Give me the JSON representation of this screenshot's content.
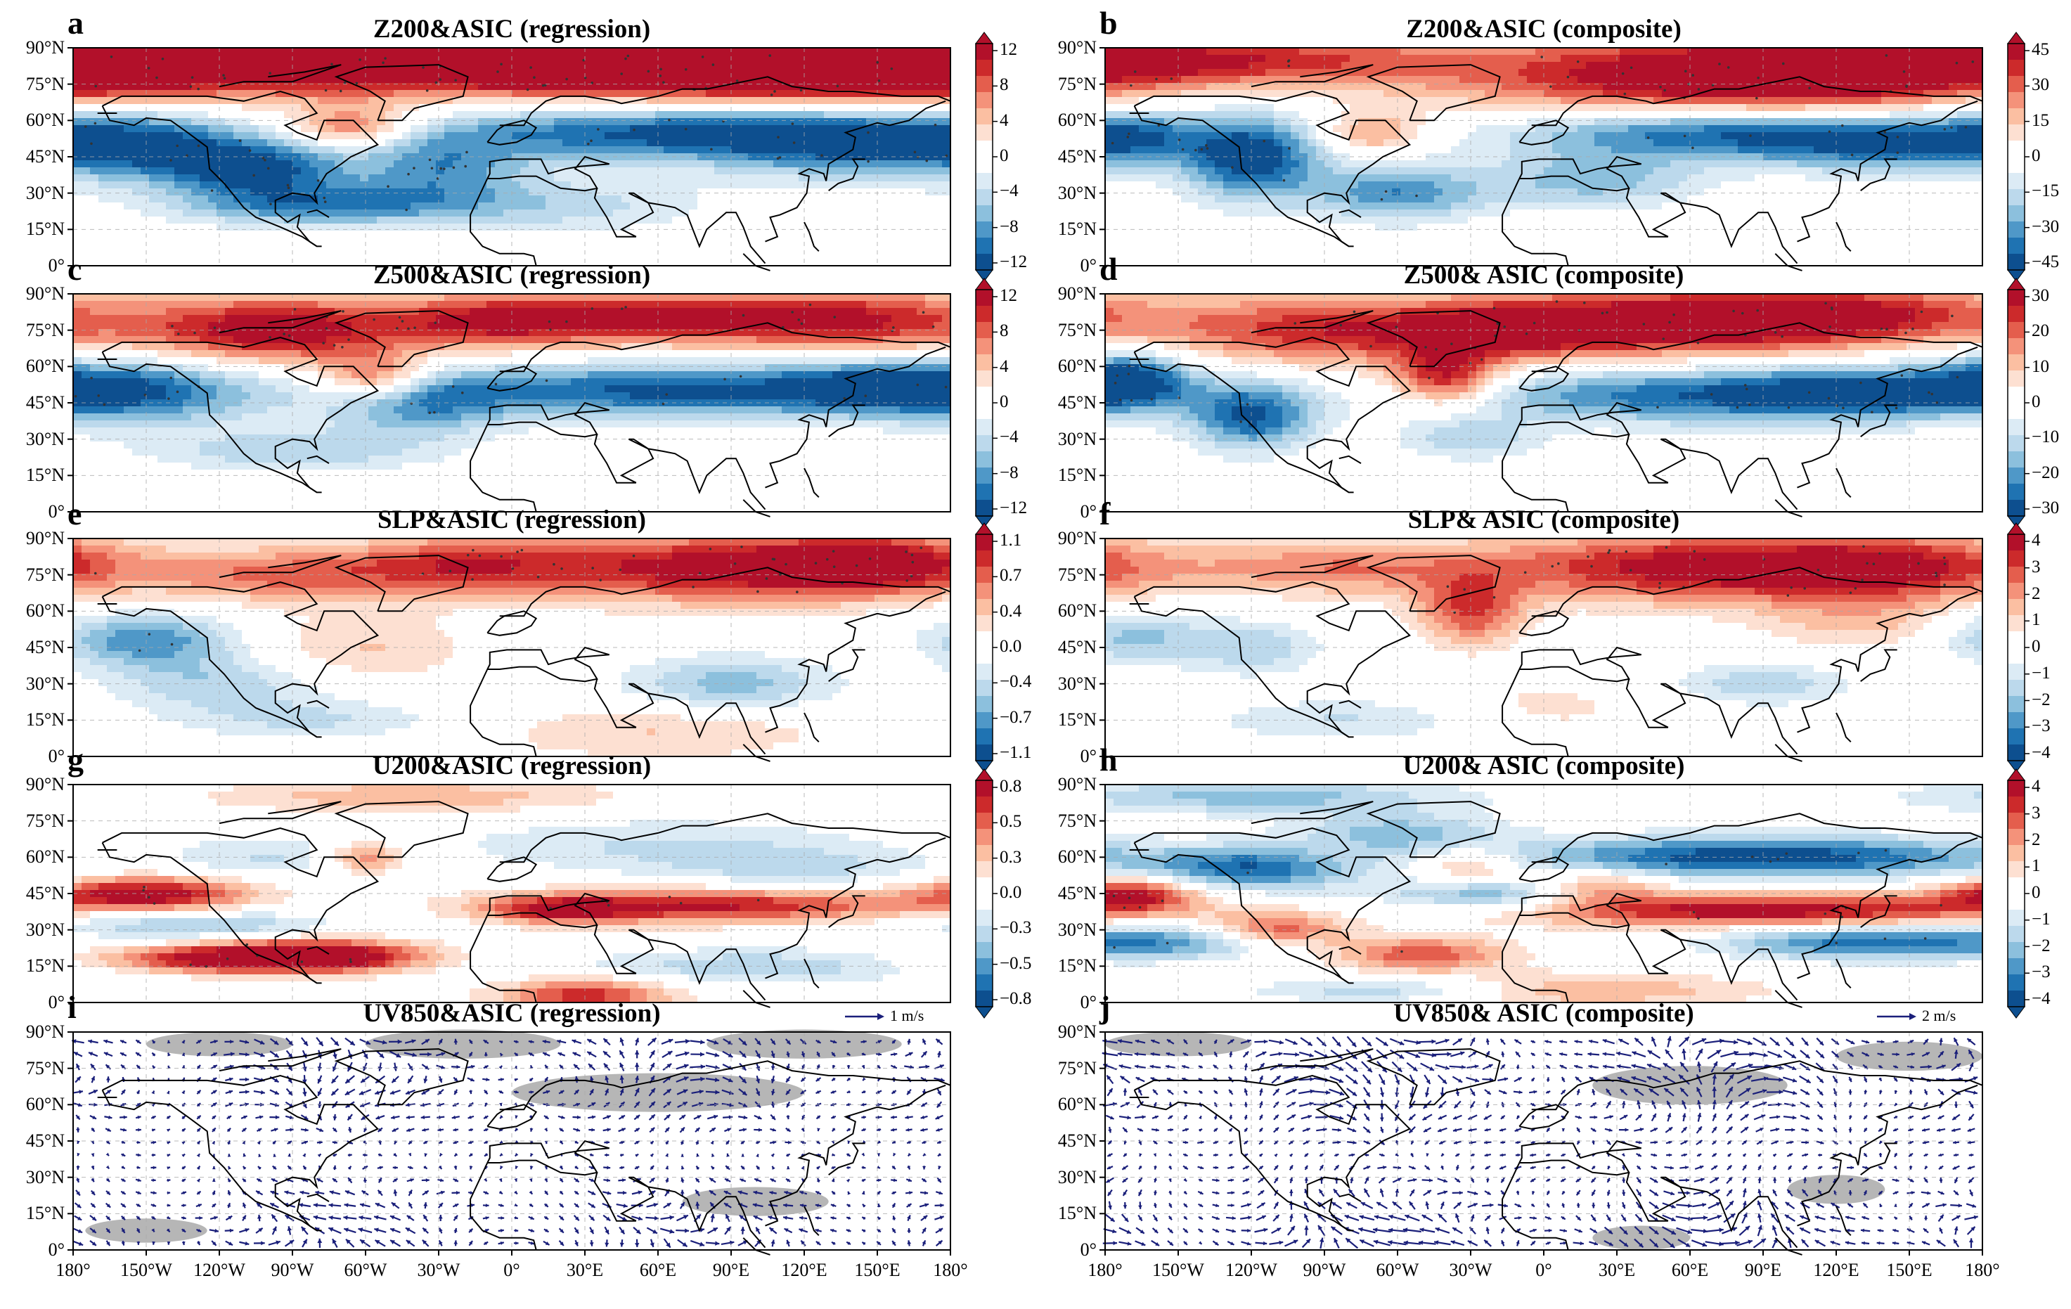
{
  "figure": {
    "panels": [
      {
        "letter": "a",
        "title": "Z200&ASIC (regression)",
        "kind": "field",
        "cbar": {
          "ticks": [
            "12",
            "8",
            "4",
            "0",
            "−4",
            "−8",
            "−12"
          ],
          "vmin": -12,
          "vmax": 12
        }
      },
      {
        "letter": "b",
        "title": "Z200&ASIC (composite)",
        "kind": "field",
        "cbar": {
          "ticks": [
            "45",
            "30",
            "15",
            "0",
            "−15",
            "−30",
            "−45"
          ],
          "vmin": -45,
          "vmax": 45
        }
      },
      {
        "letter": "c",
        "title": "Z500&ASIC (regression)",
        "kind": "field",
        "cbar": {
          "ticks": [
            "12",
            "8",
            "4",
            "0",
            "−4",
            "−8",
            "−12"
          ],
          "vmin": -12,
          "vmax": 12
        }
      },
      {
        "letter": "d",
        "title": "Z500& ASIC (composite)",
        "kind": "field",
        "cbar": {
          "ticks": [
            "30",
            "20",
            "10",
            "0",
            "−10",
            "−20",
            "−30"
          ],
          "vmin": -30,
          "vmax": 30
        }
      },
      {
        "letter": "e",
        "title": "SLP&ASIC (regression)",
        "kind": "field",
        "cbar": {
          "ticks": [
            "1.1",
            "0.7",
            "0.4",
            "0.0",
            "−0.4",
            "−0.7",
            "−1.1"
          ],
          "vmin": -1.1,
          "vmax": 1.1
        }
      },
      {
        "letter": "f",
        "title": "SLP& ASIC (composite)",
        "kind": "field",
        "cbar": {
          "ticks": [
            "4",
            "3",
            "2",
            "1",
            "0",
            "−1",
            "−2",
            "−3",
            "−4"
          ],
          "vmin": -4,
          "vmax": 4
        }
      },
      {
        "letter": "g",
        "title": "U200&ASIC (regression)",
        "kind": "field",
        "cbar": {
          "ticks": [
            "0.8",
            "0.5",
            "0.3",
            "0.0",
            "−0.3",
            "−0.5",
            "−0.8"
          ],
          "vmin": -0.8,
          "vmax": 0.8
        }
      },
      {
        "letter": "h",
        "title": "U200& ASIC (composite)",
        "kind": "field",
        "cbar": {
          "ticks": [
            "4",
            "3",
            "2",
            "1",
            "0",
            "−1",
            "−2",
            "−3",
            "−4"
          ],
          "vmin": -4,
          "vmax": 4
        }
      },
      {
        "letter": "i",
        "title": "UV850&ASIC (regression)",
        "kind": "vector",
        "ref": "1 m/s"
      },
      {
        "letter": "j",
        "title": "UV850& ASIC (composite)",
        "kind": "vector",
        "ref": "2 m/s"
      }
    ],
    "lat_labels": [
      "90°N",
      "75°N",
      "60°N",
      "45°N",
      "30°N",
      "15°N",
      "0°"
    ],
    "lon_labels": [
      "180°",
      "150°W",
      "120°W",
      "90°W",
      "60°W",
      "30°W",
      "0°",
      "30°E",
      "60°E",
      "90°E",
      "120°E",
      "150°E",
      "180°"
    ],
    "colors": {
      "pos": "#cc1f27",
      "neg": "#1170b3",
      "land": "#000000",
      "vector": "#1a1f7a",
      "stipple": "#333333",
      "grid": "#aaaaaa"
    }
  }
}
